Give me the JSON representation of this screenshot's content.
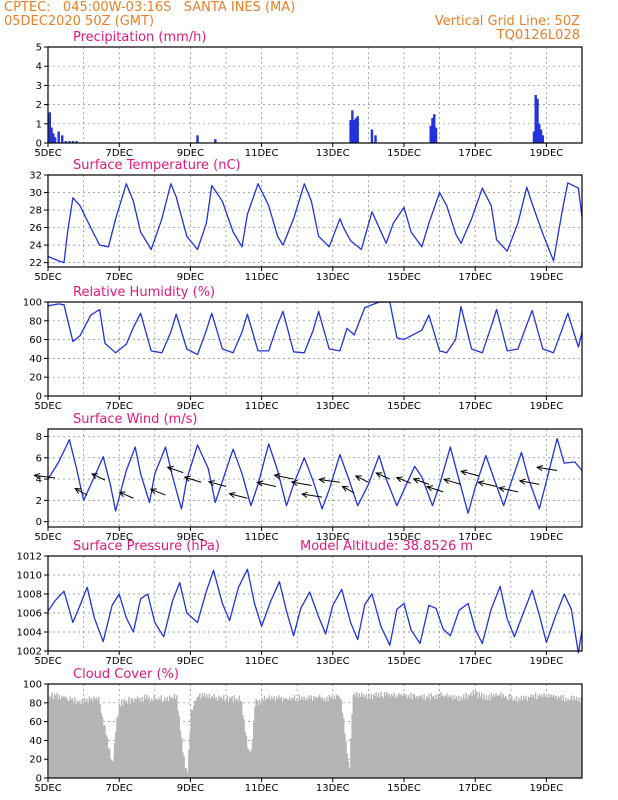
{
  "header": {
    "line1": "CPTEC:   045:00W-03:16S   SANTA INES (MA)",
    "line2": "05DEC2020 50Z (GMT)",
    "right1": "Vertical Grid Line: 50Z",
    "right2": "TQ0126L028"
  },
  "colors": {
    "header": "#e8802a",
    "title": "#e0197d",
    "line": "#2233dd",
    "cloud": "#b4b4b4",
    "grid": "#888888"
  },
  "chart_data": [
    {
      "id": "precip",
      "type": "bar",
      "title": "Precipitation (mm/h)",
      "x_tick_labels": [
        "5DEC",
        "7DEC",
        "9DEC",
        "11DEC",
        "13DEC",
        "15DEC",
        "17DEC",
        "19DEC"
      ],
      "x_range_days": [
        5,
        20
      ],
      "ylim": [
        0,
        5
      ],
      "yticks": [
        0,
        1,
        2,
        3,
        4,
        5
      ],
      "x": [
        5.05,
        5.1,
        5.15,
        5.2,
        5.3,
        5.4,
        5.5,
        5.6,
        5.7,
        5.8,
        9.2,
        9.7,
        13.5,
        13.55,
        13.6,
        13.65,
        13.7,
        14.1,
        14.2,
        15.75,
        15.8,
        15.85,
        15.9,
        18.65,
        18.7,
        18.75,
        18.8,
        18.85,
        18.9
      ],
      "values": [
        1.6,
        0.8,
        0.5,
        0.3,
        0.6,
        0.4,
        0.1,
        0.1,
        0.1,
        0.1,
        0.4,
        0.2,
        1.2,
        1.7,
        1.2,
        1.3,
        1.4,
        0.7,
        0.4,
        0.9,
        1.3,
        1.5,
        0.8,
        0.6,
        2.5,
        2.3,
        1.0,
        0.7,
        0.4
      ]
    },
    {
      "id": "temp",
      "type": "line",
      "title": "Surface Temperature (nC)",
      "x_tick_labels": [
        "5DEC",
        "7DEC",
        "9DEC",
        "11DEC",
        "13DEC",
        "15DEC",
        "17DEC",
        "19DEC"
      ],
      "x_range_days": [
        5,
        20
      ],
      "ylim": [
        21.5,
        32
      ],
      "yticks": [
        22,
        24,
        26,
        28,
        30,
        32
      ],
      "x": [
        5.0,
        5.3,
        5.45,
        5.55,
        5.7,
        5.9,
        6.2,
        6.45,
        6.7,
        6.9,
        7.2,
        7.4,
        7.6,
        7.9,
        8.2,
        8.45,
        8.6,
        8.9,
        9.2,
        9.45,
        9.6,
        9.9,
        10.2,
        10.45,
        10.6,
        10.9,
        11.2,
        11.45,
        11.6,
        11.9,
        12.2,
        12.4,
        12.6,
        12.9,
        13.2,
        13.3,
        13.5,
        13.8,
        14.1,
        14.5,
        14.7,
        15.0,
        15.2,
        15.5,
        15.7,
        16.0,
        16.2,
        16.45,
        16.6,
        16.9,
        17.2,
        17.45,
        17.6,
        17.9,
        18.2,
        18.45,
        18.6,
        18.9,
        19.2,
        19.45,
        19.6,
        19.9,
        20.0
      ],
      "values": [
        22.7,
        22.2,
        22.0,
        25.5,
        29.4,
        28.5,
        26.0,
        24.0,
        23.8,
        27.0,
        31.0,
        29.0,
        25.5,
        23.5,
        27.0,
        31.0,
        29.5,
        25.0,
        23.5,
        26.5,
        30.8,
        29.0,
        25.5,
        23.8,
        27.5,
        31.0,
        28.5,
        25.0,
        24.0,
        27.0,
        31.0,
        29.0,
        25.0,
        23.8,
        27.0,
        26.0,
        24.5,
        23.5,
        27.8,
        24.2,
        26.5,
        28.3,
        25.5,
        23.8,
        26.5,
        30.0,
        28.5,
        25.3,
        24.2,
        27.0,
        30.5,
        28.5,
        24.6,
        23.3,
        26.5,
        30.6,
        28.7,
        25.3,
        22.2,
        28.0,
        31.1,
        30.5,
        27.2
      ]
    },
    {
      "id": "rh",
      "type": "line",
      "title": "Relative Humidity (%)",
      "x_tick_labels": [
        "5DEC",
        "7DEC",
        "9DEC",
        "11DEC",
        "13DEC",
        "15DEC",
        "17DEC",
        "19DEC"
      ],
      "x_range_days": [
        5,
        20
      ],
      "ylim": [
        0,
        100
      ],
      "yticks": [
        0,
        20,
        40,
        60,
        80,
        100
      ],
      "x": [
        5.0,
        5.3,
        5.45,
        5.7,
        5.9,
        6.2,
        6.45,
        6.6,
        6.9,
        7.2,
        7.4,
        7.6,
        7.9,
        8.2,
        8.45,
        8.6,
        8.9,
        9.2,
        9.45,
        9.6,
        9.9,
        10.2,
        10.45,
        10.6,
        10.9,
        11.2,
        11.45,
        11.6,
        11.9,
        12.2,
        12.45,
        12.6,
        12.9,
        13.2,
        13.4,
        13.6,
        13.9,
        14.3,
        14.6,
        14.8,
        15.0,
        15.5,
        15.7,
        16.0,
        16.2,
        16.45,
        16.6,
        16.9,
        17.2,
        17.45,
        17.6,
        17.9,
        18.2,
        18.45,
        18.6,
        18.9,
        19.2,
        19.45,
        19.6,
        19.9,
        20.0
      ],
      "values": [
        96,
        98,
        97,
        58,
        64,
        86,
        92,
        56,
        46,
        55,
        73,
        88,
        48,
        46,
        68,
        87,
        50,
        44,
        70,
        88,
        50,
        46,
        68,
        87,
        48,
        48,
        76,
        90,
        47,
        46,
        70,
        90,
        50,
        48,
        72,
        65,
        94,
        100,
        100,
        62,
        60,
        70,
        86,
        48,
        46,
        60,
        95,
        50,
        46,
        74,
        92,
        48,
        50,
        76,
        91,
        50,
        46,
        72,
        88,
        52,
        68
      ]
    },
    {
      "id": "wind",
      "type": "line",
      "title": "Surface Wind (m/s)",
      "x_tick_labels": [
        "5DEC",
        "7DEC",
        "9DEC",
        "11DEC",
        "13DEC",
        "15DEC",
        "17DEC",
        "19DEC"
      ],
      "x_range_days": [
        5,
        20
      ],
      "ylim": [
        -0.5,
        8.7
      ],
      "yticks": [
        0,
        2,
        4,
        6,
        8
      ],
      "x": [
        5.0,
        5.3,
        5.6,
        5.8,
        6.0,
        6.3,
        6.55,
        6.75,
        6.9,
        7.2,
        7.45,
        7.6,
        7.85,
        8.0,
        8.3,
        8.5,
        8.75,
        8.9,
        9.2,
        9.5,
        9.7,
        9.9,
        10.2,
        10.45,
        10.7,
        10.9,
        11.2,
        11.45,
        11.7,
        11.9,
        12.2,
        12.45,
        12.7,
        12.9,
        13.2,
        13.45,
        13.7,
        14.0,
        14.3,
        14.5,
        14.8,
        15.0,
        15.3,
        15.5,
        15.8,
        16.0,
        16.3,
        16.5,
        16.8,
        17.0,
        17.3,
        17.5,
        17.8,
        18.0,
        18.3,
        18.5,
        18.8,
        19.0,
        19.3,
        19.5,
        19.8,
        20.0
      ],
      "values": [
        4.0,
        5.6,
        7.7,
        5.0,
        2.0,
        4.2,
        6.1,
        3.5,
        1.0,
        4.8,
        7.0,
        4.5,
        1.8,
        4.5,
        7.0,
        4.2,
        1.2,
        4.0,
        7.2,
        5.0,
        1.8,
        3.8,
        6.8,
        4.5,
        1.5,
        3.5,
        7.3,
        4.8,
        1.5,
        3.5,
        6.0,
        3.8,
        1.2,
        3.0,
        6.3,
        4.0,
        1.5,
        3.5,
        6.2,
        4.0,
        1.5,
        3.0,
        5.2,
        4.2,
        1.5,
        3.5,
        7.0,
        4.5,
        0.8,
        3.2,
        6.2,
        4.3,
        1.5,
        3.6,
        6.5,
        4.0,
        1.2,
        3.8,
        7.8,
        5.5,
        5.6,
        4.8
      ],
      "barb_x": [
        5.2,
        6.1,
        6.6,
        7.4,
        8.3,
        8.8,
        9.3,
        10.0,
        10.6,
        11.4,
        11.9,
        12.4,
        12.7,
        13.2,
        13.6,
        14.0,
        14.6,
        15.2,
        15.7,
        16.1,
        16.6,
        17.1,
        17.6,
        18.2,
        18.8,
        19.3
      ],
      "barb_speed": [
        4.1,
        2.5,
        3.9,
        2.2,
        2.5,
        4.6,
        3.7,
        3.3,
        2.2,
        3.3,
        4.0,
        3.4,
        2.3,
        3.7,
        2.7,
        3.7,
        4.0,
        3.6,
        3.5,
        2.8,
        3.5,
        4.3,
        3.3,
        2.8,
        3.5,
        4.8
      ]
    },
    {
      "id": "pres",
      "type": "line",
      "title": "Surface Pressure (hPa)",
      "annotation": "Model Altitude: 38.8526 m",
      "x_tick_labels": [
        "5DEC",
        "7DEC",
        "9DEC",
        "11DEC",
        "13DEC",
        "15DEC",
        "17DEC",
        "19DEC"
      ],
      "x_range_days": [
        5,
        20
      ],
      "ylim": [
        1002,
        1012
      ],
      "yticks": [
        1002,
        1004,
        1006,
        1008,
        1010,
        1012
      ],
      "x": [
        5.0,
        5.2,
        5.45,
        5.7,
        5.9,
        6.1,
        6.3,
        6.55,
        6.8,
        7.0,
        7.2,
        7.4,
        7.6,
        7.8,
        8.0,
        8.25,
        8.5,
        8.7,
        8.9,
        9.2,
        9.45,
        9.65,
        9.9,
        10.1,
        10.35,
        10.6,
        10.8,
        11.0,
        11.25,
        11.5,
        11.7,
        11.9,
        12.1,
        12.35,
        12.6,
        12.8,
        13.0,
        13.25,
        13.5,
        13.7,
        13.9,
        14.1,
        14.35,
        14.6,
        14.8,
        15.0,
        15.2,
        15.45,
        15.7,
        15.9,
        16.1,
        16.3,
        16.55,
        16.8,
        17.0,
        17.2,
        17.45,
        17.7,
        17.9,
        18.1,
        18.35,
        18.6,
        18.8,
        19.0,
        19.25,
        19.5,
        19.7,
        19.9,
        20.0
      ],
      "values": [
        1006.2,
        1007.3,
        1008.3,
        1005.0,
        1006.8,
        1008.7,
        1005.5,
        1003.0,
        1006.8,
        1008.0,
        1005.5,
        1004.0,
        1007.5,
        1008.0,
        1005.0,
        1003.5,
        1007.3,
        1009.2,
        1006.0,
        1005.0,
        1008.3,
        1010.5,
        1007.0,
        1005.2,
        1008.7,
        1010.6,
        1007.0,
        1004.6,
        1007.2,
        1009.3,
        1006.2,
        1003.6,
        1006.5,
        1008.2,
        1005.6,
        1003.8,
        1006.8,
        1008.5,
        1005.0,
        1003.2,
        1006.9,
        1008.0,
        1004.6,
        1002.6,
        1006.4,
        1007.0,
        1004.2,
        1002.8,
        1006.8,
        1006.5,
        1004.3,
        1003.6,
        1006.3,
        1007.0,
        1004.3,
        1002.8,
        1006.4,
        1008.8,
        1005.4,
        1003.5,
        1006.0,
        1008.4,
        1005.8,
        1002.9,
        1005.6,
        1008.0,
        1006.4,
        1001.8,
        1004.2
      ]
    },
    {
      "id": "cloud",
      "type": "area",
      "title": "Cloud Cover (%)",
      "x_tick_labels": [
        "5DEC",
        "7DEC",
        "9DEC",
        "11DEC",
        "13DEC",
        "15DEC",
        "17DEC",
        "19DEC"
      ],
      "x_range_days": [
        5,
        20
      ],
      "ylim": [
        0,
        100
      ],
      "yticks": [
        0,
        20,
        40,
        60,
        80,
        100
      ],
      "x": [
        5.0,
        5.2,
        5.5,
        5.8,
        6.1,
        6.4,
        6.7,
        6.8,
        6.9,
        7.0,
        7.4,
        7.8,
        8.2,
        8.6,
        8.8,
        8.9,
        9.0,
        9.2,
        9.6,
        10.0,
        10.4,
        10.6,
        10.7,
        10.8,
        11.2,
        11.6,
        12.0,
        12.4,
        12.8,
        13.2,
        13.45,
        13.55,
        13.7,
        14.1,
        14.5,
        14.9,
        15.3,
        15.7,
        16.1,
        16.5,
        16.9,
        17.3,
        17.7,
        18.1,
        18.5,
        18.9,
        19.3,
        19.7,
        20.0
      ],
      "values": [
        86,
        88,
        86,
        82,
        84,
        86,
        30,
        12,
        60,
        80,
        84,
        85,
        84,
        86,
        20,
        4,
        70,
        88,
        86,
        85,
        84,
        30,
        30,
        80,
        86,
        84,
        85,
        86,
        84,
        88,
        8,
        90,
        88,
        87,
        89,
        88,
        87,
        86,
        88,
        84,
        90,
        86,
        88,
        84,
        86,
        88,
        86,
        84,
        82
      ]
    }
  ]
}
